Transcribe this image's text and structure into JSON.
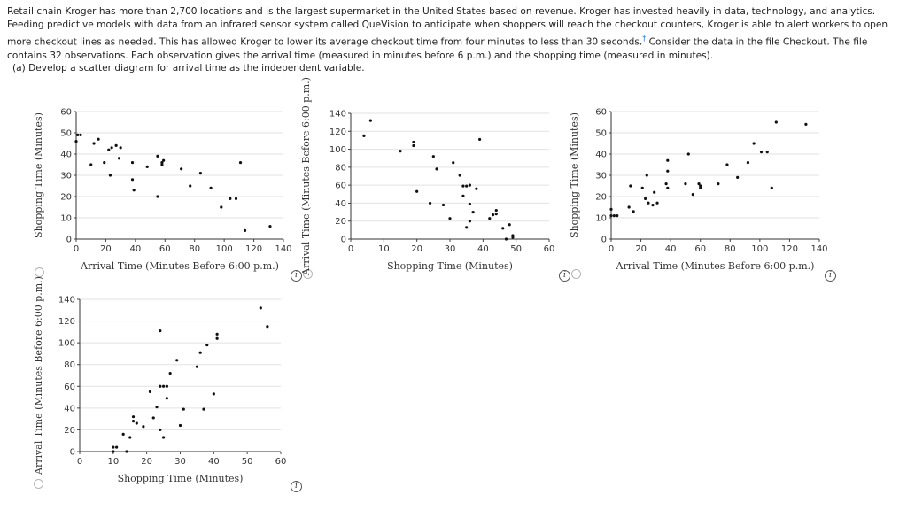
{
  "prompt": {
    "text_before_marker": "Retail chain Kroger has more than 2,700 locations and is the largest supermarket in the United States based on revenue. Kroger has invested heavily in data, technology, and analytics. Feeding predictive models with data from an infrared sensor system called QueVision to anticipate when shoppers will reach the checkout counters, Kroger is able to alert workers to open more checkout lines as needed. This has allowed Kroger to lower its average checkout time from four minutes to less than 30 seconds.",
    "marker": "†",
    "text_after_marker": " Consider the data in the file Checkout. The file contains 32 observations. Each observation gives the arrival time (measured in minutes before 6 p.m.) and the shopping time (measured in minutes)."
  },
  "part_a": "(a)   Develop a scatter diagram for arrival time as the independent variable.",
  "info_icon_glyph": "i",
  "chart_data": [
    {
      "type": "scatter",
      "id": "A",
      "xlabel": "Arrival Time (Minutes Before 6:00 p.m.)",
      "ylabel": "Shopping Time (Minutes)",
      "xlim": [
        0,
        140
      ],
      "ylim": [
        0,
        60
      ],
      "xticks": [
        0,
        20,
        40,
        60,
        80,
        100,
        120,
        140
      ],
      "yticks": [
        0,
        10,
        20,
        30,
        40,
        50,
        60
      ],
      "points": [
        [
          0,
          46
        ],
        [
          1,
          49
        ],
        [
          3,
          49
        ],
        [
          10,
          35
        ],
        [
          12,
          45
        ],
        [
          15,
          47
        ],
        [
          19,
          36
        ],
        [
          22,
          42
        ],
        [
          23,
          30
        ],
        [
          24,
          43
        ],
        [
          27,
          44
        ],
        [
          29,
          38
        ],
        [
          30,
          43
        ],
        [
          38,
          36
        ],
        [
          38,
          28
        ],
        [
          39,
          23
        ],
        [
          48,
          34
        ],
        [
          55,
          20
        ],
        [
          55,
          39
        ],
        [
          58,
          35
        ],
        [
          58,
          36
        ],
        [
          59,
          37
        ],
        [
          71,
          33
        ],
        [
          77,
          25
        ],
        [
          84,
          31
        ],
        [
          91,
          24
        ],
        [
          98,
          15
        ],
        [
          104,
          19
        ],
        [
          108,
          19
        ],
        [
          111,
          36
        ],
        [
          114,
          4
        ],
        [
          131,
          6
        ]
      ]
    },
    {
      "type": "scatter",
      "id": "B",
      "xlabel": "Shopping Time (Minutes)",
      "ylabel": "Arrival Time (Minutes Before 6:00 p.m.)",
      "xlim": [
        0,
        60
      ],
      "ylim": [
        0,
        140
      ],
      "xticks": [
        0,
        10,
        20,
        30,
        40,
        50,
        60
      ],
      "yticks": [
        0,
        20,
        40,
        60,
        80,
        100,
        120,
        140
      ],
      "points": [
        [
          4,
          115
        ],
        [
          6,
          132
        ],
        [
          15,
          98
        ],
        [
          19,
          104
        ],
        [
          19,
          108
        ],
        [
          20,
          53
        ],
        [
          24,
          40
        ],
        [
          25,
          92
        ],
        [
          26,
          78
        ],
        [
          28,
          38
        ],
        [
          30,
          23
        ],
        [
          31,
          85
        ],
        [
          33,
          71
        ],
        [
          34,
          48
        ],
        [
          34,
          59
        ],
        [
          35,
          59
        ],
        [
          35,
          13
        ],
        [
          36,
          60
        ],
        [
          36,
          20
        ],
        [
          36,
          39
        ],
        [
          37,
          30
        ],
        [
          38,
          56
        ],
        [
          39,
          111
        ],
        [
          42,
          23
        ],
        [
          43,
          27
        ],
        [
          44,
          32
        ],
        [
          44,
          28
        ],
        [
          46,
          12
        ],
        [
          47,
          0
        ],
        [
          48,
          16
        ],
        [
          49,
          4
        ],
        [
          49,
          2
        ]
      ]
    },
    {
      "type": "scatter",
      "id": "C",
      "xlabel": "Arrival Time (Minutes Before 6:00 p.m.)",
      "ylabel": "Shopping Time (Minutes)",
      "xlim": [
        0,
        140
      ],
      "ylim": [
        0,
        60
      ],
      "xticks": [
        0,
        20,
        40,
        60,
        80,
        100,
        120,
        140
      ],
      "yticks": [
        0,
        10,
        20,
        30,
        40,
        50,
        60
      ],
      "points": [
        [
          0,
          11
        ],
        [
          0,
          14
        ],
        [
          2,
          11
        ],
        [
          4,
          11
        ],
        [
          12,
          15
        ],
        [
          13,
          25
        ],
        [
          15,
          13
        ],
        [
          21,
          24
        ],
        [
          23,
          19
        ],
        [
          24,
          30
        ],
        [
          25,
          17
        ],
        [
          28,
          16
        ],
        [
          29,
          22
        ],
        [
          31,
          17
        ],
        [
          37,
          26
        ],
        [
          38,
          24
        ],
        [
          38,
          32
        ],
        [
          38,
          37
        ],
        [
          50,
          26
        ],
        [
          52,
          40
        ],
        [
          55,
          21
        ],
        [
          59,
          26
        ],
        [
          60,
          24
        ],
        [
          60,
          25
        ],
        [
          72,
          26
        ],
        [
          78,
          35
        ],
        [
          85,
          29
        ],
        [
          92,
          36
        ],
        [
          96,
          45
        ],
        [
          101,
          41
        ],
        [
          105,
          41
        ],
        [
          108,
          24
        ],
        [
          111,
          55
        ],
        [
          131,
          54
        ]
      ]
    },
    {
      "type": "scatter",
      "id": "D",
      "xlabel": "Shopping Time (Minutes)",
      "ylabel": "Arrival Time (Minutes Before 6:00 p.m.)",
      "xlim": [
        0,
        60
      ],
      "ylim": [
        0,
        140
      ],
      "xticks": [
        0,
        10,
        20,
        30,
        40,
        50,
        60
      ],
      "yticks": [
        0,
        20,
        40,
        60,
        80,
        100,
        120,
        140
      ],
      "points": [
        [
          10,
          0
        ],
        [
          10,
          4
        ],
        [
          11,
          4
        ],
        [
          13,
          16
        ],
        [
          14,
          0
        ],
        [
          15,
          13
        ],
        [
          16,
          28
        ],
        [
          16,
          32
        ],
        [
          17,
          26
        ],
        [
          19,
          23
        ],
        [
          21,
          55
        ],
        [
          22,
          31
        ],
        [
          23,
          41
        ],
        [
          24,
          111
        ],
        [
          24,
          20
        ],
        [
          24,
          60
        ],
        [
          25,
          60
        ],
        [
          26,
          60
        ],
        [
          25,
          13
        ],
        [
          26,
          49
        ],
        [
          27,
          72
        ],
        [
          29,
          84
        ],
        [
          30,
          24
        ],
        [
          31,
          39
        ],
        [
          35,
          78
        ],
        [
          36,
          91
        ],
        [
          37,
          39
        ],
        [
          38,
          98
        ],
        [
          40,
          53
        ],
        [
          41,
          104
        ],
        [
          41,
          108
        ],
        [
          54,
          132
        ],
        [
          56,
          115
        ]
      ]
    }
  ]
}
